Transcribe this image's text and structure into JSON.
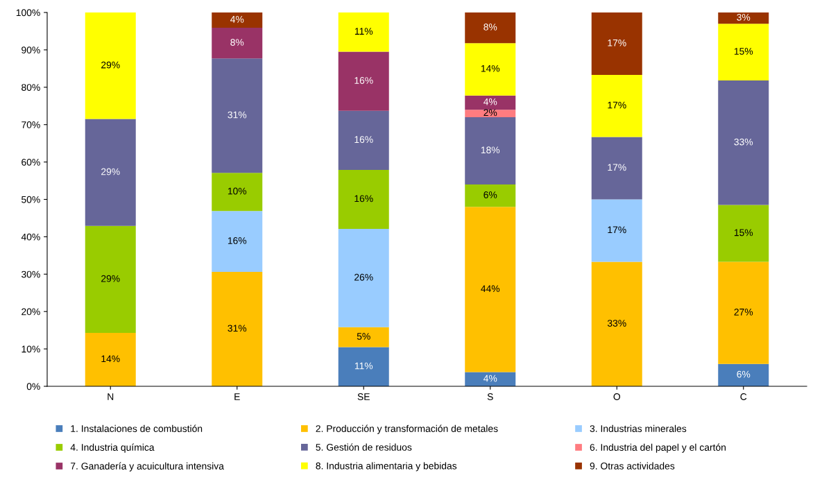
{
  "chart_data": {
    "type": "bar",
    "stacked": true,
    "categories": [
      "N",
      "E",
      "SE",
      "S",
      "O",
      "C"
    ],
    "ylim": [
      0,
      100
    ],
    "yticks": [
      {
        "value": 0,
        "label": "0%"
      },
      {
        "value": 10,
        "label": "10%"
      },
      {
        "value": 20,
        "label": "20%"
      },
      {
        "value": 30,
        "label": "30%"
      },
      {
        "value": 40,
        "label": "40%"
      },
      {
        "value": 50,
        "label": "50%"
      },
      {
        "value": 60,
        "label": "60%"
      },
      {
        "value": 70,
        "label": "70%"
      },
      {
        "value": 80,
        "label": "80%"
      },
      {
        "value": 90,
        "label": "90%"
      },
      {
        "value": 100,
        "label": "100%"
      }
    ],
    "grid": false,
    "legend": "bottom",
    "series": [
      {
        "name": "1. Instalaciones de combustión",
        "color": "#4a7ebb",
        "values": [
          0,
          0,
          10.5,
          3.8,
          0,
          6.0
        ],
        "value_labels": [
          null,
          null,
          "11%",
          "4%",
          null,
          "6%"
        ]
      },
      {
        "name": "2. Producción y transformación de metales",
        "color": "#ffc000",
        "values": [
          14.3,
          30.6,
          5.3,
          44.2,
          33.3,
          27.3
        ],
        "value_labels": [
          "14%",
          "31%",
          "5%",
          "44%",
          "33%",
          "27%"
        ]
      },
      {
        "name": "3. Industrias minerales",
        "color": "#99ccff",
        "values": [
          0,
          16.3,
          26.3,
          0,
          16.7,
          0
        ],
        "value_labels": [
          null,
          "16%",
          "26%",
          null,
          "17%",
          null
        ]
      },
      {
        "name": "4. Industria química",
        "color": "#99cc00",
        "values": [
          28.6,
          10.2,
          15.8,
          6.0,
          0,
          15.2
        ],
        "value_labels": [
          "29%",
          "10%",
          "16%",
          "6%",
          null,
          "15%"
        ]
      },
      {
        "name": "5. Gestión de residuos",
        "color": "#666699",
        "values": [
          28.6,
          30.6,
          15.8,
          18.0,
          16.7,
          33.3
        ],
        "value_labels": [
          "29%",
          "31%",
          "16%",
          "18%",
          "17%",
          "33%"
        ]
      },
      {
        "name": "6. Industria del papel y el cartón",
        "color": "#ff7c80",
        "values": [
          0,
          0,
          0,
          2.0,
          0,
          0
        ],
        "value_labels": [
          null,
          null,
          null,
          "2%",
          null,
          null
        ]
      },
      {
        "name": "7. Ganadería y acuicultura intensiva",
        "color": "#993366",
        "values": [
          0,
          8.2,
          15.8,
          3.8,
          0,
          0
        ],
        "value_labels": [
          null,
          "8%",
          "16%",
          "4%",
          null,
          null
        ]
      },
      {
        "name": "8. Industria alimentaria y bebidas",
        "color": "#ffff00",
        "values": [
          28.5,
          0,
          10.5,
          14.0,
          16.6,
          15.2
        ],
        "value_labels": [
          "29%",
          null,
          "11%",
          "14%",
          "17%",
          "15%"
        ]
      },
      {
        "name": "9. Otras actividades",
        "color": "#993300",
        "values": [
          0,
          4.1,
          0,
          8.2,
          16.7,
          3.0
        ],
        "value_labels": [
          null,
          "4%",
          null,
          "8%",
          "17%",
          "3%"
        ]
      }
    ]
  }
}
